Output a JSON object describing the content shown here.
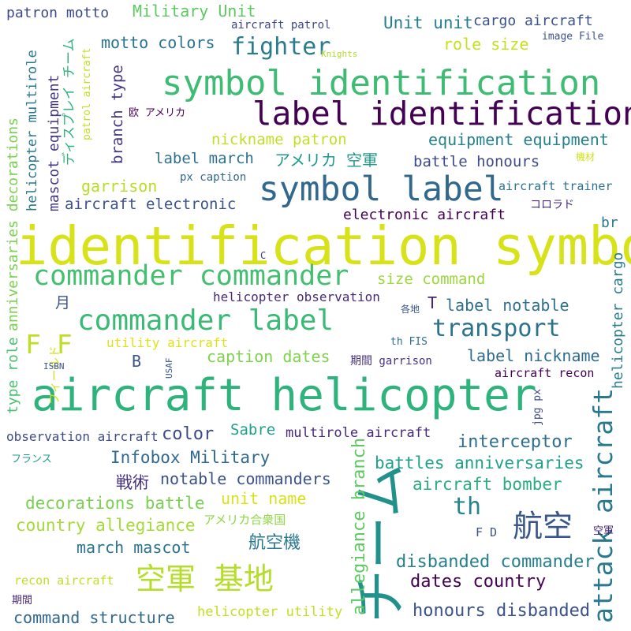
{
  "words": [
    {
      "text": "identification symbol",
      "color": "#d8e219"
    },
    {
      "text": "aircraft helicopter",
      "color": "#2eb37c"
    },
    {
      "text": "symbol identification",
      "color": "#3fbc73"
    },
    {
      "text": "label identification",
      "color": "#440154"
    },
    {
      "text": "symbol label",
      "color": "#31688e"
    },
    {
      "text": "commander commander",
      "color": "#44bf70"
    },
    {
      "text": "commander label",
      "color": "#3aba76"
    },
    {
      "text": "チーム",
      "color": "#21918c"
    },
    {
      "text": "attack aircraft",
      "color": "#2a788e"
    },
    {
      "text": "空軍 基地",
      "color": "#b5de2b"
    },
    {
      "text": "航空",
      "color": "#39568c"
    },
    {
      "text": "transport",
      "color": "#2c728e"
    },
    {
      "text": "F F",
      "color": "#bddf26"
    },
    {
      "text": "fighter",
      "color": "#287c8e"
    },
    {
      "text": "th",
      "color": "#25848e"
    },
    {
      "text": "allegiance branch",
      "color": "#5ec962"
    },
    {
      "text": "honours disbanded",
      "color": "#3b528b"
    },
    {
      "text": "dates country",
      "color": "#440154"
    },
    {
      "text": "disbanded commander",
      "color": "#27808e"
    },
    {
      "text": "interceptor",
      "color": "#2e6e8e"
    },
    {
      "text": "battles anniversaries",
      "color": "#1fa088"
    },
    {
      "text": "aircraft bomber",
      "color": "#28ae80"
    },
    {
      "text": "notable commanders",
      "color": "#3b528b"
    },
    {
      "text": "Infobox Military",
      "color": "#31688e"
    },
    {
      "text": "decorations battle",
      "color": "#7ad151"
    },
    {
      "text": "country allegiance",
      "color": "#a5db36"
    },
    {
      "text": "march mascot",
      "color": "#2c728e"
    },
    {
      "text": "command structure",
      "color": "#31688e"
    },
    {
      "text": "航空機",
      "color": "#2a788e"
    },
    {
      "text": "戦術",
      "color": "#46327e"
    },
    {
      "text": "unit name",
      "color": "#d8e219"
    },
    {
      "text": "アメリカ合衆国",
      "color": "#8fd744"
    },
    {
      "text": "color",
      "color": "#3e4989"
    },
    {
      "text": "Sabre",
      "color": "#1fa088"
    },
    {
      "text": "multirole aircraft",
      "color": "#482878"
    },
    {
      "text": "observation aircraft",
      "color": "#3e4989"
    },
    {
      "text": "type role",
      "color": "#4ac16d"
    },
    {
      "text": "anniversaries decorations",
      "color": "#7ad151"
    },
    {
      "text": "helicopter multirole",
      "color": "#2a788e"
    },
    {
      "text": "mascot equipment",
      "color": "#443a83"
    },
    {
      "text": "ディスプレイ チーム",
      "color": "#2eb37c"
    },
    {
      "text": "patrol aircraft",
      "color": "#c2df23"
    },
    {
      "text": "branch type",
      "color": "#453781"
    },
    {
      "text": "patron motto",
      "color": "#3e4989"
    },
    {
      "text": "Military Unit",
      "color": "#5ec962"
    },
    {
      "text": "aircraft patrol",
      "color": "#3f4788"
    },
    {
      "text": "Unit unit",
      "color": "#277f8e"
    },
    {
      "text": "cargo aircraft",
      "color": "#3b528b"
    },
    {
      "text": "motto colors",
      "color": "#2c728e"
    },
    {
      "text": "role size",
      "color": "#c8e020"
    },
    {
      "text": "image File",
      "color": "#3b528b"
    },
    {
      "text": "Knights",
      "color": "#addc30"
    },
    {
      "text": "欧 アメリカ",
      "color": "#440154"
    },
    {
      "text": "nickname patron",
      "color": "#c2df23"
    },
    {
      "text": "equipment equipment",
      "color": "#26818e"
    },
    {
      "text": "label march",
      "color": "#2c728e"
    },
    {
      "text": "アメリカ 空軍",
      "color": "#1f9a8a"
    },
    {
      "text": "battle honours",
      "color": "#3e4a89"
    },
    {
      "text": "機材",
      "color": "#d0e11c"
    },
    {
      "text": "px caption",
      "color": "#31688e"
    },
    {
      "text": "garrison",
      "color": "#b8de29"
    },
    {
      "text": "aircraft electronic",
      "color": "#3b528b"
    },
    {
      "text": "aircraft trainer",
      "color": "#2c728e"
    },
    {
      "text": "コロラド",
      "color": "#482878"
    },
    {
      "text": "electronic aircraft",
      "color": "#440154"
    },
    {
      "text": "br",
      "color": "#2a788e"
    },
    {
      "text": "helicopter cargo",
      "color": "#287d8e"
    },
    {
      "text": "C",
      "color": "#453781"
    },
    {
      "text": "size command",
      "color": "#9bd93c"
    },
    {
      "text": "helicopter observation",
      "color": "#482878"
    },
    {
      "text": "T",
      "color": "#482475"
    },
    {
      "text": "label notable",
      "color": "#2d708e"
    },
    {
      "text": "各地",
      "color": "#39568c"
    },
    {
      "text": "月",
      "color": "#3b528b"
    },
    {
      "text": "utility aircraft",
      "color": "#dde318"
    },
    {
      "text": "フィールド",
      "color": "#d2e21b"
    },
    {
      "text": "th FIS",
      "color": "#2e6f8e"
    },
    {
      "text": "label nickname",
      "color": "#2f6b8e"
    },
    {
      "text": "B",
      "color": "#3b528b"
    },
    {
      "text": "caption dates",
      "color": "#7fd34e"
    },
    {
      "text": "期間 garrison",
      "color": "#46327e"
    },
    {
      "text": "ISBN",
      "color": "#3b528b"
    },
    {
      "text": "USAF",
      "color": "#3b528b"
    },
    {
      "text": "aircraft recon",
      "color": "#440154"
    },
    {
      "text": "jpg px",
      "color": "#3e4989"
    },
    {
      "text": "フランス",
      "color": "#1f9e89"
    },
    {
      "text": "F D",
      "color": "#3b528b"
    },
    {
      "text": "空軍",
      "color": "#482878"
    },
    {
      "text": "recon aircraft",
      "color": "#c0df25"
    },
    {
      "text": "期間",
      "color": "#482878"
    },
    {
      "text": "helicopter utility",
      "color": "#c5e021"
    }
  ]
}
